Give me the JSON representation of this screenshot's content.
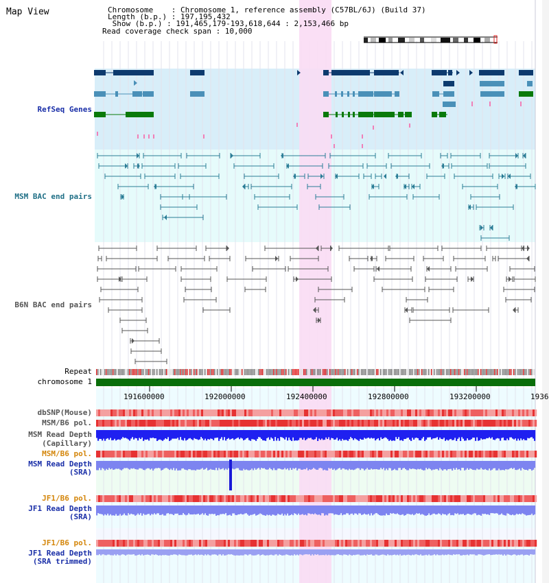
{
  "view_title": "Map View",
  "info": {
    "rows": [
      {
        "label": "Chromosome",
        "value": "Chromosome 1, reference assembly (C57BL/6J) (Build 37)"
      },
      {
        "label": "Length (b.p.)",
        "value": "197,195,432"
      },
      {
        "label": "Show (b.p.)",
        "value": "191,465,179-193,618,644 : 2,153,466 bp"
      },
      {
        "label": "Read coverage check span",
        "value": "10,000"
      }
    ],
    "line1": "Chromosome    : Chromosome 1, reference assembly (C57BL/6J) (Build 37)",
    "line2": "Length (b.p.) : 197,195,432",
    "line3": " Show (b.p.) : 191,465,179-193,618,644 : 2,153,466 bp",
    "line4": "Read coverage check span : 10,000"
  },
  "tracks": {
    "refseq": "RefSeq Genes",
    "msm_bac": "MSM BAC end pairs",
    "b6n_bac": "B6N BAC end pairs",
    "repeat": "Repeat",
    "chromosome": "chromosome 1",
    "dbsnp": "dbSNP(Mouse)",
    "msm_b6_pol_1": "MSM/B6 pol.",
    "msm_depth_cap_1": "MSM Read Depth",
    "msm_depth_cap_2": "(Capillary)",
    "msm_b6_pol_2": "MSM/B6 pol.",
    "msm_depth_sra_1": "MSM Read Depth",
    "msm_depth_sra_2": "(SRA)",
    "jf1_b6_pol_1": "JF1/B6 pol.",
    "jf1_depth_sra_1": "JF1 Read Depth",
    "jf1_depth_sra_2": "(SRA)",
    "jf1_b6_pol_2": "JF1/B6 pol.",
    "jf1_depth_trim_1": "JF1 Read Depth",
    "jf1_depth_trim_2": "(SRA trimmed)"
  },
  "axis": {
    "ticks": [
      {
        "label": "191600000"
      },
      {
        "label": "192000000"
      },
      {
        "label": "192400000"
      },
      {
        "label": "192800000"
      },
      {
        "label": "193200000"
      },
      {
        "label": "1936"
      }
    ]
  },
  "colors": {
    "refseq_bg": "#d8eef9",
    "bac_bg": "#e6fbfb",
    "highlight": "#f9dcf4",
    "gene_dark": "#0d3a6e",
    "gene_mid": "#4a90b8",
    "gene_green": "#0a7a0a",
    "msm_bac": "#2a7c96",
    "b6n_bac": "#555555",
    "depth_blue": "#1f20f0",
    "depth_light": "#7d84f0",
    "chromosome": "#0a6e0a",
    "label_blue": "#1a2fa8",
    "label_teal": "#1f6f86",
    "label_orange": "#d4860b"
  }
}
